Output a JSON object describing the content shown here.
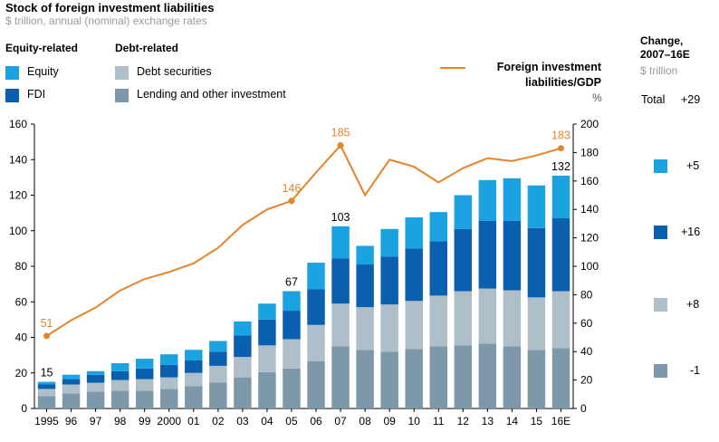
{
  "header": {
    "title": "Stock of foreign investment liabilities",
    "subtitle": "$ trillion, annual (nominal) exchange rates"
  },
  "legend": {
    "equity_group": "Equity-related",
    "debt_group": "Debt-related",
    "items": [
      {
        "label": "Equity",
        "color": "#1aa3e0"
      },
      {
        "label": "FDI",
        "color": "#0a5fae"
      },
      {
        "label": "Debt securities",
        "color": "#aebfca"
      },
      {
        "label": "Lending and other investment",
        "color": "#7d98a8"
      }
    ],
    "line_label_1": "Foreign investment",
    "line_label_2": "liabilities/GDP",
    "line_color": "#e8832a",
    "right_unit": "%"
  },
  "change_panel": {
    "heading_1": "Change,",
    "heading_2": "2007–16E",
    "unit": "$ trillion",
    "total_label": "Total",
    "total_value": "+29",
    "values": [
      "+5",
      "+16",
      "+8",
      "-1"
    ]
  },
  "chart_data": {
    "type": "bar",
    "stacked": true,
    "categories": [
      "1995",
      "96",
      "97",
      "98",
      "99",
      "2000",
      "01",
      "02",
      "03",
      "04",
      "05",
      "06",
      "07",
      "08",
      "09",
      "10",
      "11",
      "12",
      "13",
      "14",
      "15",
      "16E"
    ],
    "series": [
      {
        "name": "Lending and other investment",
        "values": [
          7,
          8.5,
          9.5,
          10,
          10,
          11,
          12.5,
          14.5,
          17.5,
          20.5,
          22.5,
          26.5,
          35,
          33,
          32,
          33.5,
          35,
          35.5,
          36.5,
          35,
          33,
          34
        ]
      },
      {
        "name": "Debt securities",
        "values": [
          4,
          5,
          5,
          6,
          6.5,
          6.5,
          7.5,
          9.5,
          11.5,
          15,
          16.5,
          20.5,
          24,
          24,
          26.5,
          27,
          28.5,
          30.5,
          31,
          31.5,
          29.5,
          32
        ]
      },
      {
        "name": "FDI",
        "values": [
          2.5,
          3,
          4.5,
          5,
          6,
          7,
          7,
          8,
          12,
          14.5,
          16,
          20,
          25.5,
          24,
          27,
          29.5,
          30.5,
          35,
          38,
          39,
          39,
          41
        ]
      },
      {
        "name": "Equity",
        "values": [
          1.5,
          2.5,
          2,
          4.5,
          5.5,
          6,
          6,
          6,
          8,
          9,
          11,
          15,
          18,
          10.5,
          15.5,
          17.5,
          16.5,
          19,
          23,
          24,
          24,
          24
        ]
      }
    ],
    "totals_labels": [
      {
        "category": "1995",
        "label": "15"
      },
      {
        "category": "05",
        "label": "67"
      },
      {
        "category": "07",
        "label": "103"
      },
      {
        "category": "16E",
        "label": "132"
      }
    ],
    "line": {
      "name": "Foreign investment liabilities/GDP",
      "axis": "right",
      "values": [
        51,
        62,
        71,
        83,
        91,
        96,
        102,
        113,
        129,
        140,
        146,
        166,
        185,
        150,
        175,
        170,
        159,
        169,
        176,
        174,
        178,
        183
      ],
      "labels": [
        {
          "category": "1995",
          "label": "51"
        },
        {
          "category": "05",
          "label": "146"
        },
        {
          "category": "07",
          "label": "185"
        },
        {
          "category": "16E",
          "label": "183"
        }
      ]
    },
    "y_left": {
      "min": 0,
      "max": 160,
      "ticks": [
        0,
        20,
        40,
        60,
        80,
        100,
        120,
        140,
        160
      ]
    },
    "y_right": {
      "min": 0,
      "max": 200,
      "ticks": [
        0,
        20,
        40,
        60,
        80,
        100,
        120,
        140,
        160,
        180,
        200
      ]
    },
    "grid": false
  }
}
